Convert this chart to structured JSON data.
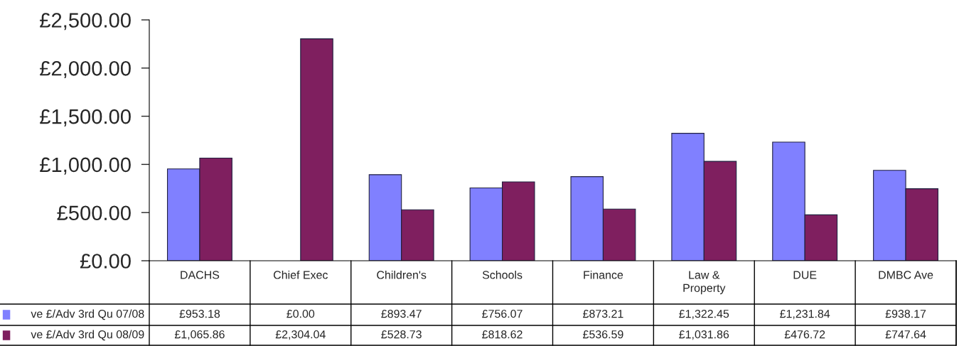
{
  "chart_data": {
    "type": "bar",
    "categories": [
      "DACHS",
      "Chief Exec",
      "Children's",
      "Schools",
      "Finance",
      "Law &\nProperty",
      "DUE",
      "DMBC Ave"
    ],
    "series": [
      {
        "name": "ve £/Adv 3rd Qu 07/08",
        "color": "#8080ff",
        "values": [
          953.18,
          0.0,
          893.47,
          756.07,
          873.21,
          1322.45,
          1231.84,
          938.17
        ],
        "value_labels": [
          "£953.18",
          "£0.00",
          "£893.47",
          "£756.07",
          "£873.21",
          "£1,322.45",
          "£1,231.84",
          "£938.17"
        ]
      },
      {
        "name": "ve £/Adv 3rd Qu 08/09",
        "color": "#7f1f5f",
        "values": [
          1065.86,
          2304.04,
          528.73,
          818.62,
          536.59,
          1031.86,
          476.72,
          747.64
        ],
        "value_labels": [
          "£1,065.86",
          "£2,304.04",
          "£528.73",
          "£818.62",
          "£536.59",
          "£1,031.86",
          "£476.72",
          "£747.64"
        ]
      }
    ],
    "ylim": [
      0,
      2500
    ],
    "yticks": [
      {
        "value": 0,
        "label": "£0.00"
      },
      {
        "value": 500,
        "label": "£500.00"
      },
      {
        "value": 1000,
        "label": "£1,000.00"
      },
      {
        "value": 1500,
        "label": "£1,500.00"
      },
      {
        "value": 2000,
        "label": "£2,000.00"
      },
      {
        "value": 2500,
        "label": "£2,500.00"
      }
    ],
    "grid": false,
    "legend": "left"
  }
}
